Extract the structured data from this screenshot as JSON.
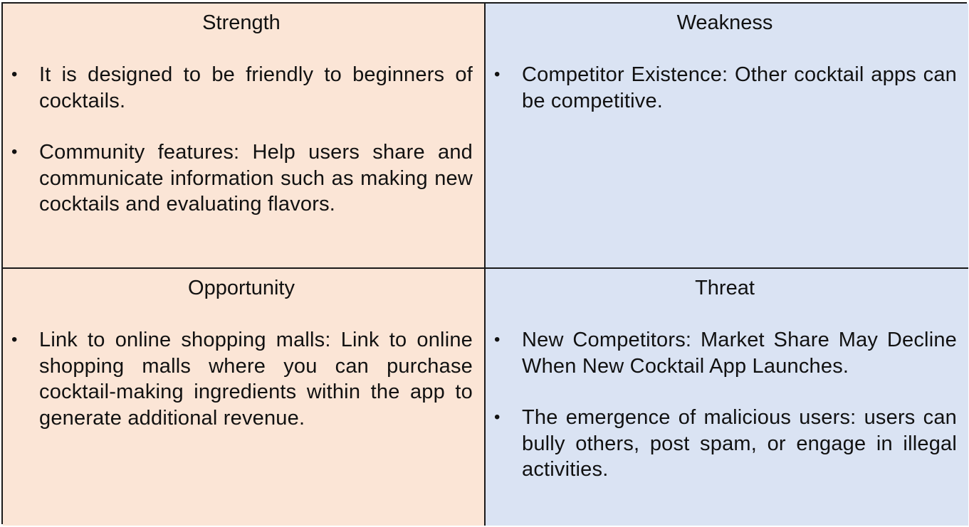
{
  "colors": {
    "left_fill": "#fbe5d6",
    "right_fill": "#dae3f3",
    "border": "#1a1a1a"
  },
  "swot": {
    "strength": {
      "title": "Strength",
      "items": [
        "It is designed to be friendly to beginners of cocktails.",
        "Community features: Help users share and communicate information such as making new cocktails and evaluating flavors."
      ]
    },
    "weakness": {
      "title": "Weakness",
      "items": [
        "Competitor Existence: Other cocktail apps can be competitive."
      ]
    },
    "opportunity": {
      "title": "Opportunity",
      "items": [
        "Link to online shopping malls: Link to online shopping malls where you can purchase cocktail-making ingredients within the app to generate additional revenue."
      ]
    },
    "threat": {
      "title": "Threat",
      "items": [
        "New Competitors: Market Share May Decline When New Cocktail App Launches.",
        "The emergence of malicious users: users can bully others, post spam, or engage in illegal activities."
      ]
    }
  }
}
